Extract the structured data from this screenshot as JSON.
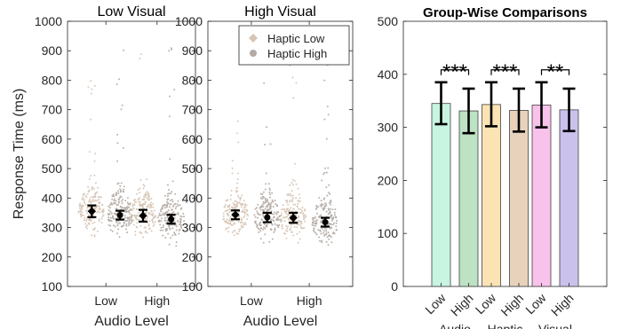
{
  "chart_data": [
    {
      "type": "scatter",
      "title": "Low Visual",
      "xlabel": "Audio Level",
      "ylabel": "Response Time (ms)",
      "ylim": [
        100,
        1000
      ],
      "yticks": [
        "100",
        "200",
        "300",
        "400",
        "500",
        "600",
        "700",
        "800",
        "900",
        "1000"
      ],
      "categories": [
        "Low",
        "High"
      ],
      "series": [
        {
          "name": "Haptic Low",
          "means": [
            355,
            340
          ],
          "err_low": [
            335,
            320
          ],
          "err_high": [
            375,
            360
          ]
        },
        {
          "name": "Haptic High",
          "means": [
            342,
            328
          ],
          "err_low": [
            327,
            313
          ],
          "err_high": [
            357,
            343
          ]
        }
      ]
    },
    {
      "type": "scatter",
      "title": "High Visual",
      "xlabel": "Audio Level",
      "ylabel": "",
      "ylim": [
        100,
        1000
      ],
      "yticks": [
        "100",
        "200",
        "300",
        "400",
        "500",
        "600",
        "700",
        "800",
        "900",
        "1000"
      ],
      "categories": [
        "Low",
        "High"
      ],
      "legend": {
        "placement": "top-right",
        "entries": [
          "Haptic Low",
          "Haptic High"
        ]
      },
      "series": [
        {
          "name": "Haptic Low",
          "means": [
            343,
            333
          ],
          "err_low": [
            328,
            316
          ],
          "err_high": [
            358,
            350
          ]
        },
        {
          "name": "Haptic High",
          "means": [
            334,
            318
          ],
          "err_low": [
            318,
            303
          ],
          "err_high": [
            350,
            333
          ]
        }
      ]
    },
    {
      "type": "bar",
      "title": "Group-Wise Comparisons",
      "ylim": [
        0,
        500
      ],
      "yticks": [
        "0",
        "100",
        "200",
        "300",
        "400",
        "500"
      ],
      "bar_labels": [
        "Low",
        "High",
        "Low",
        "High",
        "Low",
        "High"
      ],
      "groups": [
        "Audio",
        "Haptic",
        "Visual"
      ],
      "values": [
        345,
        331,
        343,
        332,
        342,
        333
      ],
      "err_low": [
        306,
        289,
        302,
        292,
        300,
        293
      ],
      "err_high": [
        385,
        373,
        385,
        373,
        385,
        373
      ],
      "significance": [
        "***",
        "***",
        "**"
      ],
      "colors": [
        "#c8f4e2",
        "#bde2c4",
        "#fbe3b4",
        "#e8d2bc",
        "#f8c2ea",
        "#cac2ec"
      ]
    }
  ]
}
